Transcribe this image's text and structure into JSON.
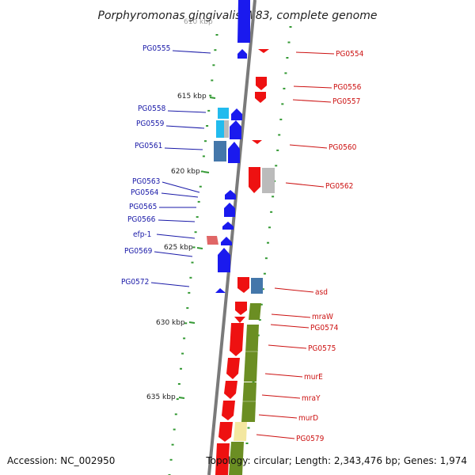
{
  "title": "Porphyromonas gingivalis W83, complete genome",
  "footer": {
    "accession": "Accession: NC_002950",
    "topology": "Topology: circular; Length: 2,343,476 bp; Genes: 1,974"
  },
  "scale": {
    "unit": "kbp",
    "ticks": [
      {
        "label": "610 kbp"
      },
      {
        "label": "615 kbp"
      },
      {
        "label": "620 kbp"
      },
      {
        "label": "625 kbp"
      },
      {
        "label": "630 kbp"
      },
      {
        "label": "635 kbp"
      }
    ]
  },
  "colors": {
    "backbone": "#7a7a7a",
    "forward_gene": "#1a1aee",
    "reverse_gene": "#ee1111",
    "cyan_gene": "#22bbee",
    "steel_gene": "#4477aa",
    "olive_gene": "#6b8e23",
    "pale_gene": "#f3e7a0",
    "pink_gene": "#e06666",
    "grey_gene": "#aaaaaa",
    "tick_green": "#339933",
    "left_label": "#1a1aa8",
    "right_label": "#cc1111"
  },
  "left_labels": [
    "PG0555",
    "PG0558",
    "PG0559",
    "PG0561",
    "PG0563",
    "PG0564",
    "PG0565",
    "PG0566",
    "efp-1",
    "PG0569",
    "PG0572"
  ],
  "right_labels": [
    "PG0554",
    "PG0556",
    "PG0557",
    "PG0560",
    "PG0562",
    "asd",
    "mraW",
    "PG0574",
    "PG0575",
    "murE",
    "mraY",
    "murD",
    "PG0579"
  ]
}
